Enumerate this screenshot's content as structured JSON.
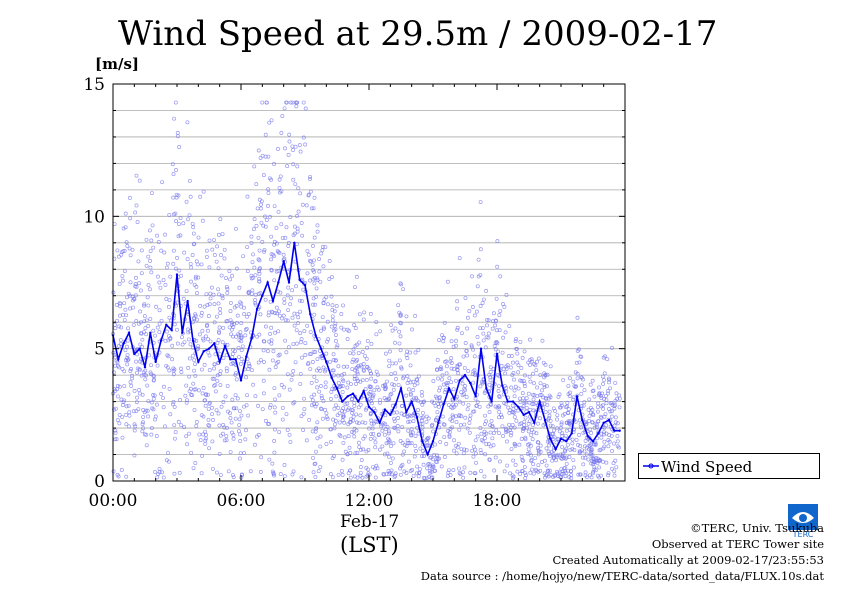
{
  "title": "Wind Speed at 29.5m / 2009-02-17",
  "y_unit": "[m/s]",
  "x_sub_label": "Feb-17",
  "x_label": "(LST)",
  "legend_label": "Wind Speed",
  "credits": {
    "copyright": "©TERC, Univ. Tsukuba",
    "observed": "Observed at TERC Tower site",
    "created": "Created Automatically at 2009-02-17/23:55:53",
    "source": "Data source : /home/hojyo/new/TERC-data/sorted_data/FLUX.10s.dat"
  },
  "logo_text": "TERC",
  "colors": {
    "series": "#0000ee",
    "scatter": "#7777ee",
    "grid": "#aaaaaa"
  },
  "chart_data": {
    "type": "line",
    "title": "Wind Speed at 29.5m / 2009-02-17",
    "ylabel": "[m/s]",
    "xlabel": "(LST)",
    "ylim": [
      0,
      15
    ],
    "xlim_hours": [
      0,
      24
    ],
    "y_ticks": [
      0,
      5,
      10,
      15
    ],
    "x_ticks": [
      {
        "hour": 0,
        "label": "00:00"
      },
      {
        "hour": 6,
        "label": "06:00"
      },
      {
        "hour": 12,
        "label": "12:00"
      },
      {
        "hour": 18,
        "label": "18:00"
      }
    ],
    "grid": true,
    "legend": "lower-right outside",
    "series": [
      {
        "name": "Wind Speed",
        "x_hours": [
          0.0,
          0.25,
          0.5,
          0.75,
          1.0,
          1.25,
          1.5,
          1.75,
          2.0,
          2.25,
          2.5,
          2.75,
          3.0,
          3.25,
          3.5,
          3.75,
          4.0,
          4.25,
          4.5,
          4.75,
          5.0,
          5.25,
          5.5,
          5.75,
          6.0,
          6.25,
          6.5,
          6.75,
          7.0,
          7.25,
          7.5,
          7.75,
          8.0,
          8.25,
          8.5,
          8.75,
          9.0,
          9.25,
          9.5,
          9.75,
          10.0,
          10.25,
          10.5,
          10.75,
          11.0,
          11.25,
          11.5,
          11.75,
          12.0,
          12.25,
          12.5,
          12.75,
          13.0,
          13.25,
          13.5,
          13.75,
          14.0,
          14.25,
          14.5,
          14.75,
          15.0,
          15.25,
          15.5,
          15.75,
          16.0,
          16.25,
          16.5,
          16.75,
          17.0,
          17.25,
          17.5,
          17.75,
          18.0,
          18.25,
          18.5,
          18.75,
          19.0,
          19.25,
          19.5,
          19.75,
          20.0,
          20.25,
          20.5,
          20.75,
          21.0,
          21.25,
          21.5,
          21.75,
          22.0,
          22.25,
          22.5,
          22.75,
          23.0,
          23.25,
          23.5,
          23.75
        ],
        "values": [
          5.5,
          4.6,
          5.2,
          5.6,
          4.8,
          5.0,
          4.3,
          5.6,
          4.5,
          5.3,
          5.9,
          5.7,
          7.8,
          5.6,
          6.8,
          5.3,
          4.5,
          4.9,
          5.0,
          5.2,
          4.5,
          5.1,
          4.6,
          4.6,
          3.8,
          4.7,
          5.4,
          6.5,
          7.0,
          7.5,
          6.8,
          7.5,
          8.3,
          7.5,
          9.0,
          7.6,
          7.4,
          6.3,
          5.5,
          5.0,
          4.5,
          3.9,
          3.5,
          3.0,
          3.2,
          3.3,
          3.0,
          3.4,
          2.8,
          2.6,
          2.2,
          2.7,
          2.5,
          2.9,
          3.5,
          2.6,
          3.0,
          2.4,
          1.5,
          1.0,
          1.5,
          2.2,
          2.9,
          3.5,
          3.1,
          3.8,
          4.0,
          3.7,
          3.2,
          5.0,
          3.5,
          3.0,
          4.8,
          3.6,
          3.0,
          3.0,
          2.8,
          2.5,
          2.6,
          2.2,
          3.0,
          2.3,
          1.6,
          1.2,
          1.6,
          1.5,
          1.8,
          3.2,
          2.3,
          1.7,
          1.5,
          1.8,
          2.2,
          2.3,
          1.9,
          1.9
        ]
      }
    ]
  }
}
